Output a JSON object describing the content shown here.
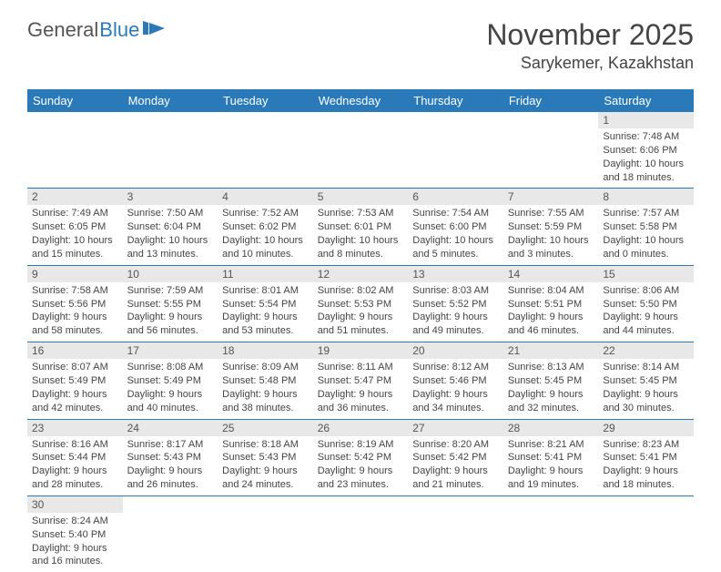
{
  "brand": {
    "part1": "General",
    "part2": "Blue"
  },
  "title": {
    "month": "November 2025",
    "location": "Sarykemer, Kazakhstan"
  },
  "colors": {
    "header_bg": "#2a7ab9",
    "header_fg": "#ffffff",
    "daynum_bg": "#e8e8e8",
    "rule": "#2a7ab9",
    "text": "#444444"
  },
  "weekdays": [
    "Sunday",
    "Monday",
    "Tuesday",
    "Wednesday",
    "Thursday",
    "Friday",
    "Saturday"
  ],
  "weeks": [
    [
      null,
      null,
      null,
      null,
      null,
      null,
      {
        "n": "1",
        "sr": "Sunrise: 7:48 AM",
        "ss": "Sunset: 6:06 PM",
        "d1": "Daylight: 10 hours",
        "d2": "and 18 minutes."
      }
    ],
    [
      {
        "n": "2",
        "sr": "Sunrise: 7:49 AM",
        "ss": "Sunset: 6:05 PM",
        "d1": "Daylight: 10 hours",
        "d2": "and 15 minutes."
      },
      {
        "n": "3",
        "sr": "Sunrise: 7:50 AM",
        "ss": "Sunset: 6:04 PM",
        "d1": "Daylight: 10 hours",
        "d2": "and 13 minutes."
      },
      {
        "n": "4",
        "sr": "Sunrise: 7:52 AM",
        "ss": "Sunset: 6:02 PM",
        "d1": "Daylight: 10 hours",
        "d2": "and 10 minutes."
      },
      {
        "n": "5",
        "sr": "Sunrise: 7:53 AM",
        "ss": "Sunset: 6:01 PM",
        "d1": "Daylight: 10 hours",
        "d2": "and 8 minutes."
      },
      {
        "n": "6",
        "sr": "Sunrise: 7:54 AM",
        "ss": "Sunset: 6:00 PM",
        "d1": "Daylight: 10 hours",
        "d2": "and 5 minutes."
      },
      {
        "n": "7",
        "sr": "Sunrise: 7:55 AM",
        "ss": "Sunset: 5:59 PM",
        "d1": "Daylight: 10 hours",
        "d2": "and 3 minutes."
      },
      {
        "n": "8",
        "sr": "Sunrise: 7:57 AM",
        "ss": "Sunset: 5:58 PM",
        "d1": "Daylight: 10 hours",
        "d2": "and 0 minutes."
      }
    ],
    [
      {
        "n": "9",
        "sr": "Sunrise: 7:58 AM",
        "ss": "Sunset: 5:56 PM",
        "d1": "Daylight: 9 hours",
        "d2": "and 58 minutes."
      },
      {
        "n": "10",
        "sr": "Sunrise: 7:59 AM",
        "ss": "Sunset: 5:55 PM",
        "d1": "Daylight: 9 hours",
        "d2": "and 56 minutes."
      },
      {
        "n": "11",
        "sr": "Sunrise: 8:01 AM",
        "ss": "Sunset: 5:54 PM",
        "d1": "Daylight: 9 hours",
        "d2": "and 53 minutes."
      },
      {
        "n": "12",
        "sr": "Sunrise: 8:02 AM",
        "ss": "Sunset: 5:53 PM",
        "d1": "Daylight: 9 hours",
        "d2": "and 51 minutes."
      },
      {
        "n": "13",
        "sr": "Sunrise: 8:03 AM",
        "ss": "Sunset: 5:52 PM",
        "d1": "Daylight: 9 hours",
        "d2": "and 49 minutes."
      },
      {
        "n": "14",
        "sr": "Sunrise: 8:04 AM",
        "ss": "Sunset: 5:51 PM",
        "d1": "Daylight: 9 hours",
        "d2": "and 46 minutes."
      },
      {
        "n": "15",
        "sr": "Sunrise: 8:06 AM",
        "ss": "Sunset: 5:50 PM",
        "d1": "Daylight: 9 hours",
        "d2": "and 44 minutes."
      }
    ],
    [
      {
        "n": "16",
        "sr": "Sunrise: 8:07 AM",
        "ss": "Sunset: 5:49 PM",
        "d1": "Daylight: 9 hours",
        "d2": "and 42 minutes."
      },
      {
        "n": "17",
        "sr": "Sunrise: 8:08 AM",
        "ss": "Sunset: 5:49 PM",
        "d1": "Daylight: 9 hours",
        "d2": "and 40 minutes."
      },
      {
        "n": "18",
        "sr": "Sunrise: 8:09 AM",
        "ss": "Sunset: 5:48 PM",
        "d1": "Daylight: 9 hours",
        "d2": "and 38 minutes."
      },
      {
        "n": "19",
        "sr": "Sunrise: 8:11 AM",
        "ss": "Sunset: 5:47 PM",
        "d1": "Daylight: 9 hours",
        "d2": "and 36 minutes."
      },
      {
        "n": "20",
        "sr": "Sunrise: 8:12 AM",
        "ss": "Sunset: 5:46 PM",
        "d1": "Daylight: 9 hours",
        "d2": "and 34 minutes."
      },
      {
        "n": "21",
        "sr": "Sunrise: 8:13 AM",
        "ss": "Sunset: 5:45 PM",
        "d1": "Daylight: 9 hours",
        "d2": "and 32 minutes."
      },
      {
        "n": "22",
        "sr": "Sunrise: 8:14 AM",
        "ss": "Sunset: 5:45 PM",
        "d1": "Daylight: 9 hours",
        "d2": "and 30 minutes."
      }
    ],
    [
      {
        "n": "23",
        "sr": "Sunrise: 8:16 AM",
        "ss": "Sunset: 5:44 PM",
        "d1": "Daylight: 9 hours",
        "d2": "and 28 minutes."
      },
      {
        "n": "24",
        "sr": "Sunrise: 8:17 AM",
        "ss": "Sunset: 5:43 PM",
        "d1": "Daylight: 9 hours",
        "d2": "and 26 minutes."
      },
      {
        "n": "25",
        "sr": "Sunrise: 8:18 AM",
        "ss": "Sunset: 5:43 PM",
        "d1": "Daylight: 9 hours",
        "d2": "and 24 minutes."
      },
      {
        "n": "26",
        "sr": "Sunrise: 8:19 AM",
        "ss": "Sunset: 5:42 PM",
        "d1": "Daylight: 9 hours",
        "d2": "and 23 minutes."
      },
      {
        "n": "27",
        "sr": "Sunrise: 8:20 AM",
        "ss": "Sunset: 5:42 PM",
        "d1": "Daylight: 9 hours",
        "d2": "and 21 minutes."
      },
      {
        "n": "28",
        "sr": "Sunrise: 8:21 AM",
        "ss": "Sunset: 5:41 PM",
        "d1": "Daylight: 9 hours",
        "d2": "and 19 minutes."
      },
      {
        "n": "29",
        "sr": "Sunrise: 8:23 AM",
        "ss": "Sunset: 5:41 PM",
        "d1": "Daylight: 9 hours",
        "d2": "and 18 minutes."
      }
    ],
    [
      {
        "n": "30",
        "sr": "Sunrise: 8:24 AM",
        "ss": "Sunset: 5:40 PM",
        "d1": "Daylight: 9 hours",
        "d2": "and 16 minutes."
      },
      null,
      null,
      null,
      null,
      null,
      null
    ]
  ]
}
